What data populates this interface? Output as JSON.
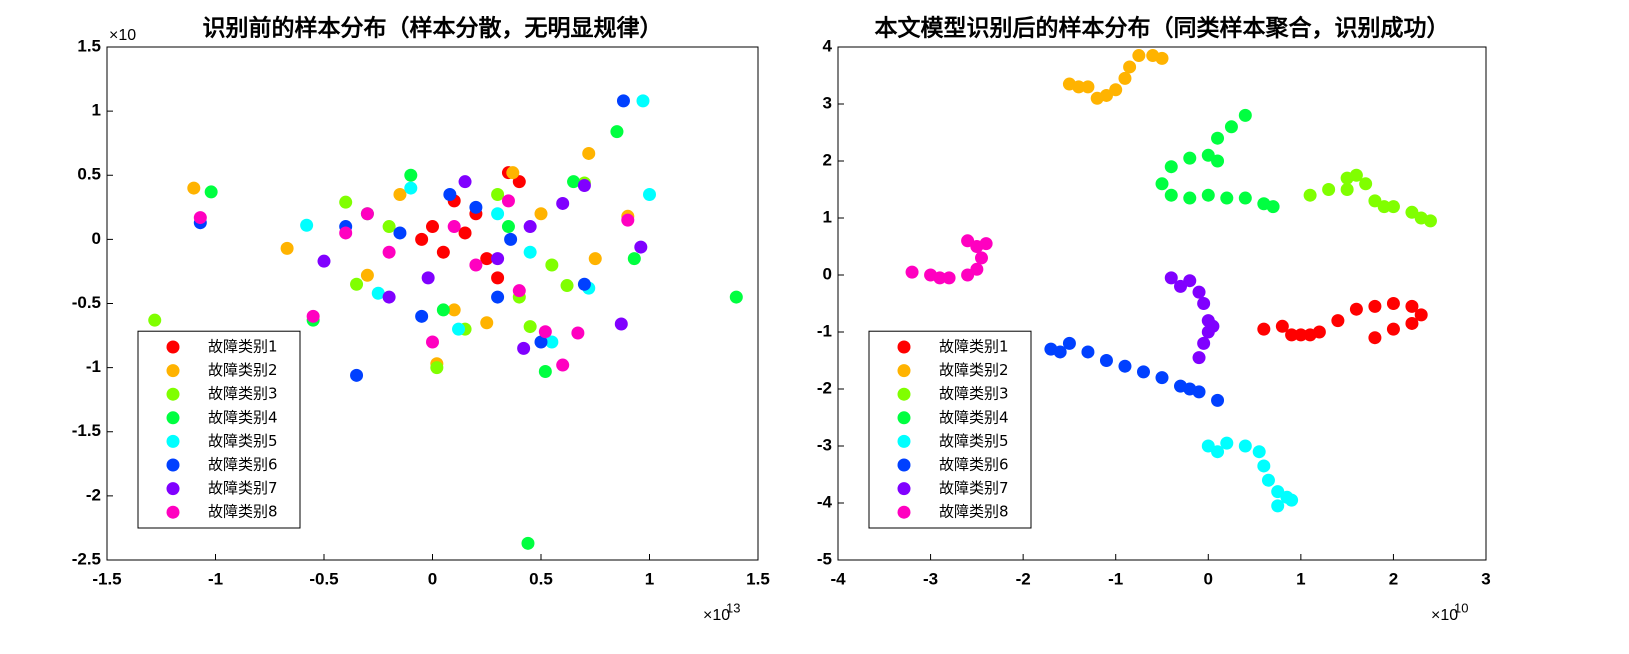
{
  "chart_data": [
    {
      "type": "scatter",
      "title": "识别前的样本分布（样本分散，无明显规律）",
      "xlim": [
        -1.5,
        1.5
      ],
      "xticks": [
        -1.5,
        -1,
        -0.5,
        0,
        0.5,
        1,
        1.5
      ],
      "ylim": [
        -2.5,
        1.5
      ],
      "yticks": [
        -2.5,
        -2,
        -1.5,
        -1,
        -0.5,
        0,
        0.5,
        1,
        1.5
      ],
      "x_exponent_base": "×10",
      "x_exponent_power": "13",
      "y_exponent_base": "×10",
      "grid": false,
      "legend": "lower left",
      "series": [
        {
          "name": "故障类别1",
          "color": "#ff0000",
          "x": [
            0.35,
            0.15,
            0.05,
            0.2,
            -0.05,
            0.3,
            0.1,
            0.25,
            0.0,
            0.4
          ],
          "y": [
            0.52,
            0.05,
            -0.1,
            0.2,
            0.0,
            -0.3,
            0.3,
            -0.15,
            0.1,
            0.45
          ]
        },
        {
          "name": "故障类别2",
          "color": "#ffb300",
          "x": [
            -1.1,
            -0.67,
            0.02,
            0.72,
            0.37,
            0.75,
            -0.3,
            0.1,
            0.5,
            0.9,
            -0.15,
            0.25
          ],
          "y": [
            0.4,
            -0.07,
            -0.97,
            0.67,
            0.52,
            -0.15,
            -0.28,
            -0.55,
            0.2,
            0.18,
            0.35,
            -0.65
          ]
        },
        {
          "name": "故障类别3",
          "color": "#80ff00",
          "x": [
            -1.28,
            0.7,
            0.02,
            -0.4,
            0.4,
            0.62,
            -0.2,
            0.15,
            0.55,
            0.3,
            -0.35,
            0.45
          ],
          "y": [
            -0.63,
            0.44,
            -1.0,
            0.29,
            -0.45,
            -0.36,
            0.1,
            -0.7,
            -0.2,
            0.35,
            -0.35,
            -0.68
          ]
        },
        {
          "name": "故障类别4",
          "color": "#00ff40",
          "x": [
            1.4,
            0.44,
            -1.02,
            0.85,
            0.52,
            -0.55,
            0.65,
            0.93,
            -0.3,
            0.05,
            0.35,
            -0.1
          ],
          "y": [
            -0.45,
            -2.37,
            0.37,
            0.84,
            -1.03,
            -0.63,
            0.45,
            -0.15,
            0.2,
            -0.55,
            0.1,
            0.5
          ]
        },
        {
          "name": "故障类别5",
          "color": "#00ffff",
          "x": [
            0.97,
            1.0,
            -0.58,
            0.12,
            -0.25,
            0.45,
            0.72,
            -0.1,
            0.3,
            0.55
          ],
          "y": [
            1.08,
            0.35,
            0.11,
            -0.7,
            -0.42,
            -0.1,
            -0.38,
            0.4,
            0.2,
            -0.8
          ]
        },
        {
          "name": "故障类别6",
          "color": "#0040ff",
          "x": [
            0.88,
            -0.35,
            -1.07,
            0.3,
            -0.15,
            0.08,
            0.5,
            -0.4,
            0.2,
            0.7,
            -0.05,
            0.36
          ],
          "y": [
            1.08,
            -1.06,
            0.13,
            -0.45,
            0.05,
            0.35,
            -0.8,
            0.1,
            0.25,
            -0.35,
            -0.6,
            0.0
          ]
        },
        {
          "name": "故障类别7",
          "color": "#8000ff",
          "x": [
            0.87,
            0.96,
            0.7,
            -0.5,
            0.42,
            -0.2,
            0.15,
            0.6,
            -0.02,
            0.3,
            0.45
          ],
          "y": [
            -0.66,
            -0.06,
            0.42,
            -0.17,
            -0.85,
            -0.45,
            0.45,
            0.28,
            -0.3,
            -0.15,
            0.1
          ]
        },
        {
          "name": "故障类别8",
          "color": "#ff00c0",
          "x": [
            -1.07,
            0.67,
            0.6,
            -0.4,
            0.2,
            -0.2,
            0.0,
            0.4,
            0.1,
            0.35,
            -0.3,
            0.52,
            0.9,
            -0.55
          ],
          "y": [
            0.17,
            -0.73,
            -0.98,
            0.05,
            -0.2,
            -0.1,
            -0.8,
            -0.4,
            0.1,
            0.3,
            0.2,
            -0.72,
            0.15,
            -0.6
          ]
        }
      ]
    },
    {
      "type": "scatter",
      "title": "本文模型识别后的样本分布（同类样本聚合，识别成功）",
      "xlim": [
        -4,
        3
      ],
      "xticks": [
        -4,
        -3,
        -2,
        -1,
        0,
        1,
        2,
        3
      ],
      "ylim": [
        -5,
        4
      ],
      "yticks": [
        -5,
        -4,
        -3,
        -2,
        -1,
        0,
        1,
        2,
        3,
        4
      ],
      "x_exponent_base": "×10",
      "x_exponent_power": "10",
      "grid": false,
      "legend": "lower left",
      "series": [
        {
          "name": "故障类别1",
          "color": "#ff0000",
          "x": [
            0.6,
            0.8,
            1.0,
            1.2,
            1.4,
            1.6,
            1.8,
            2.0,
            2.2,
            2.3,
            2.2,
            2.0,
            1.8,
            1.1,
            0.9
          ],
          "y": [
            -0.95,
            -0.9,
            -1.05,
            -1.0,
            -0.8,
            -0.6,
            -0.55,
            -0.5,
            -0.55,
            -0.7,
            -0.85,
            -0.95,
            -1.1,
            -1.05,
            -1.05
          ]
        },
        {
          "name": "故障类别2",
          "color": "#ffb300",
          "x": [
            -1.5,
            -1.3,
            -1.1,
            -1.0,
            -0.9,
            -0.85,
            -0.75,
            -0.6,
            -0.5,
            -1.2,
            -1.4
          ],
          "y": [
            3.35,
            3.3,
            3.15,
            3.25,
            3.45,
            3.65,
            3.85,
            3.85,
            3.8,
            3.1,
            3.3
          ]
        },
        {
          "name": "故障类别3",
          "color": "#80ff00",
          "x": [
            1.1,
            1.3,
            1.5,
            1.6,
            1.7,
            1.8,
            2.0,
            2.2,
            2.3,
            2.4,
            1.5,
            1.9
          ],
          "y": [
            1.4,
            1.5,
            1.7,
            1.75,
            1.6,
            1.3,
            1.2,
            1.1,
            1.0,
            0.95,
            1.5,
            1.2
          ]
        },
        {
          "name": "故障类别4",
          "color": "#00ff40",
          "x": [
            0.4,
            0.25,
            0.1,
            0.0,
            -0.2,
            -0.4,
            -0.5,
            -0.4,
            -0.2,
            0.0,
            0.2,
            0.4,
            0.6,
            0.7,
            0.1
          ],
          "y": [
            2.8,
            2.6,
            2.4,
            2.1,
            2.05,
            1.9,
            1.6,
            1.4,
            1.35,
            1.4,
            1.35,
            1.35,
            1.25,
            1.2,
            2.0
          ]
        },
        {
          "name": "故障类别5",
          "color": "#00ffff",
          "x": [
            0.0,
            0.2,
            0.4,
            0.55,
            0.6,
            0.65,
            0.75,
            0.85,
            0.75,
            0.9,
            0.1
          ],
          "y": [
            -3.0,
            -2.95,
            -3.0,
            -3.1,
            -3.35,
            -3.6,
            -3.8,
            -3.9,
            -4.05,
            -3.95,
            -3.1
          ]
        },
        {
          "name": "故障类别6",
          "color": "#0040ff",
          "x": [
            -1.7,
            -1.5,
            -1.3,
            -1.1,
            -0.9,
            -0.7,
            -0.5,
            -0.3,
            -0.1,
            0.1,
            -1.6,
            -0.2
          ],
          "y": [
            -1.3,
            -1.2,
            -1.35,
            -1.5,
            -1.6,
            -1.7,
            -1.8,
            -1.95,
            -2.05,
            -2.2,
            -1.35,
            -2.0
          ]
        },
        {
          "name": "故障类别7",
          "color": "#8000ff",
          "x": [
            -0.4,
            -0.2,
            -0.1,
            -0.05,
            0.0,
            0.0,
            -0.05,
            -0.1,
            -0.3,
            0.05
          ],
          "y": [
            -0.05,
            -0.1,
            -0.3,
            -0.5,
            -0.8,
            -1.0,
            -1.2,
            -1.45,
            -0.2,
            -0.9
          ]
        },
        {
          "name": "故障类别8",
          "color": "#ff00c0",
          "x": [
            -3.2,
            -3.0,
            -2.8,
            -2.6,
            -2.5,
            -2.45,
            -2.5,
            -2.6,
            -2.4,
            -2.9
          ],
          "y": [
            0.05,
            0.0,
            -0.05,
            0.0,
            0.1,
            0.3,
            0.5,
            0.6,
            0.55,
            -0.05
          ]
        }
      ]
    }
  ]
}
